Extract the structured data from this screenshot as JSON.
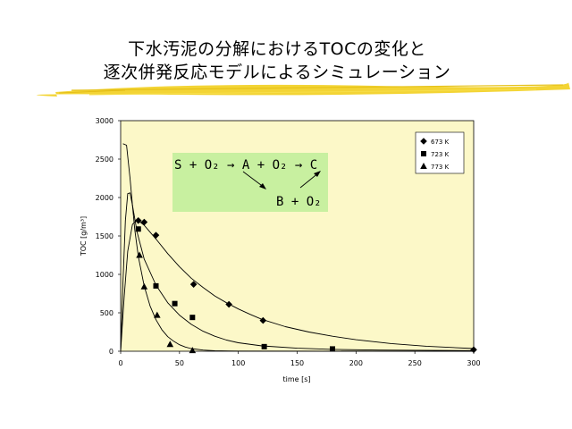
{
  "slide": {
    "title_line1": "下水汚泥の分解におけるTOCの変化と",
    "title_line2": "逐次併発反応モデルによるシミュレーション"
  },
  "reaction_scheme": {
    "line1": "S + O₂ → A + O₂ → C",
    "line2": "B + O₂"
  },
  "colors": {
    "plot_bg": "#fcf8c8",
    "scheme_bg": "#c8f0a0",
    "brush": "#f2d22a",
    "frame": "#000000"
  },
  "chart_data": {
    "type": "scatter",
    "xlabel": "time [s]",
    "ylabel": "TOC [g/m³]",
    "xlim": [
      0,
      300
    ],
    "ylim": [
      0,
      3000
    ],
    "xticks": [
      0,
      50,
      100,
      150,
      200,
      250,
      300
    ],
    "yticks": [
      0,
      500,
      1000,
      1500,
      2000,
      2500,
      3000
    ],
    "legend_position": "top-right",
    "series": [
      {
        "name": "673 K",
        "marker": "diamond",
        "points": [
          [
            15,
            1700
          ],
          [
            20,
            1680
          ],
          [
            30,
            1510
          ],
          [
            62,
            870
          ],
          [
            92,
            610
          ],
          [
            121,
            400
          ],
          [
            300,
            20
          ]
        ],
        "curve": [
          [
            0,
            0
          ],
          [
            3,
            700
          ],
          [
            6,
            1300
          ],
          [
            10,
            1650
          ],
          [
            14,
            1710
          ],
          [
            20,
            1640
          ],
          [
            30,
            1460
          ],
          [
            40,
            1270
          ],
          [
            50,
            1100
          ],
          [
            60,
            950
          ],
          [
            70,
            830
          ],
          [
            80,
            720
          ],
          [
            90,
            630
          ],
          [
            100,
            550
          ],
          [
            110,
            480
          ],
          [
            120,
            415
          ],
          [
            140,
            320
          ],
          [
            160,
            250
          ],
          [
            180,
            195
          ],
          [
            200,
            150
          ],
          [
            230,
            100
          ],
          [
            260,
            65
          ],
          [
            300,
            35
          ]
        ]
      },
      {
        "name": "723 K",
        "marker": "square",
        "points": [
          [
            15,
            1590
          ],
          [
            30,
            850
          ],
          [
            46,
            620
          ],
          [
            61,
            440
          ],
          [
            122,
            60
          ],
          [
            180,
            30
          ]
        ],
        "curve": [
          [
            0,
            0
          ],
          [
            2,
            900
          ],
          [
            4,
            1700
          ],
          [
            6,
            2050
          ],
          [
            8,
            2060
          ],
          [
            10,
            1900
          ],
          [
            14,
            1550
          ],
          [
            20,
            1200
          ],
          [
            30,
            860
          ],
          [
            40,
            630
          ],
          [
            50,
            470
          ],
          [
            60,
            350
          ],
          [
            70,
            260
          ],
          [
            80,
            195
          ],
          [
            90,
            145
          ],
          [
            100,
            110
          ],
          [
            120,
            70
          ],
          [
            150,
            40
          ],
          [
            180,
            25
          ],
          [
            220,
            15
          ],
          [
            300,
            8
          ]
        ]
      },
      {
        "name": "773 K",
        "marker": "triangle",
        "points": [
          [
            16,
            1250
          ],
          [
            20,
            840
          ],
          [
            31,
            470
          ],
          [
            42,
            90
          ],
          [
            61,
            10
          ]
        ],
        "curve": [
          [
            2,
            2700
          ],
          [
            5,
            2680
          ],
          [
            8,
            2250
          ],
          [
            10,
            1900
          ],
          [
            12,
            1580
          ],
          [
            15,
            1230
          ],
          [
            20,
            850
          ],
          [
            25,
            590
          ],
          [
            30,
            410
          ],
          [
            35,
            280
          ],
          [
            40,
            190
          ],
          [
            45,
            130
          ],
          [
            50,
            85
          ],
          [
            55,
            55
          ],
          [
            60,
            35
          ],
          [
            70,
            15
          ],
          [
            80,
            6
          ],
          [
            100,
            2
          ],
          [
            300,
            0
          ]
        ]
      }
    ]
  }
}
